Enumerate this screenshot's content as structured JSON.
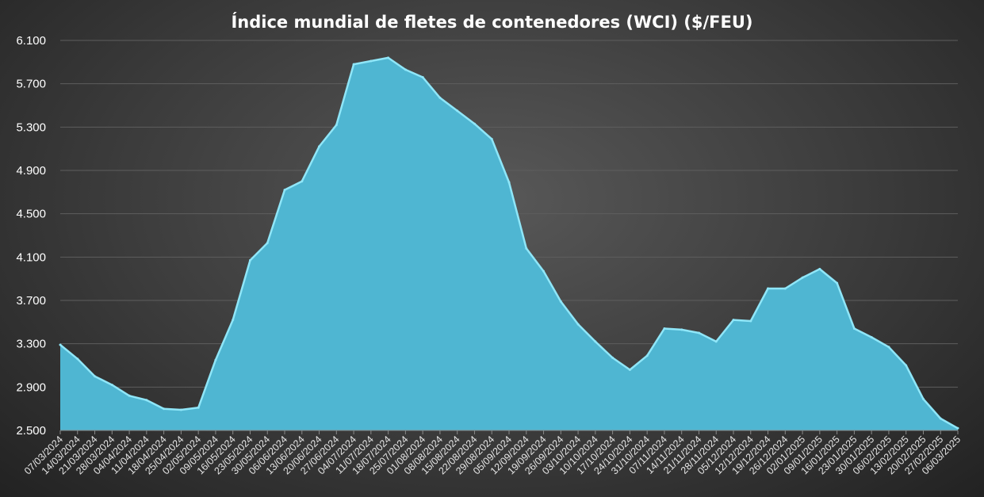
{
  "chart_data": {
    "type": "area",
    "title": "Índice mundial de fletes de contenedores (WCI) ($/FEU)",
    "xlabel": "",
    "ylabel": "",
    "ylim": [
      2500,
      6100
    ],
    "yticks": [
      "2.500",
      "2.900",
      "3.300",
      "3.700",
      "4.100",
      "4.500",
      "4.900",
      "5.300",
      "5.700",
      "6.100"
    ],
    "ytick_values": [
      2500,
      2900,
      3300,
      3700,
      4100,
      4500,
      4900,
      5300,
      5700,
      6100
    ],
    "grid": true,
    "legend": "none",
    "colors": {
      "fill": "#4fb6d2",
      "edge": "#8fe6f8",
      "grid": "#5e5e5e",
      "text": "#ffffff"
    },
    "categories": [
      "07/03/2024",
      "14/03/2024",
      "21/03/2024",
      "28/03/2024",
      "04/04/2024",
      "11/04/2024",
      "18/04/2024",
      "25/04/2024",
      "02/05/2024",
      "09/05/2024",
      "16/05/2024",
      "23/05/2024",
      "30/05/2024",
      "06/06/2024",
      "13/06/2024",
      "20/06/2024",
      "27/06/2024",
      "04/07/2024",
      "11/07/2024",
      "18/07/2024",
      "25/07/2024",
      "01/08/2024",
      "08/08/2024",
      "15/08/2024",
      "22/08/2024",
      "29/08/2024",
      "05/09/2024",
      "12/09/2024",
      "19/09/2024",
      "26/09/2024",
      "03/10/2024",
      "10/10/2024",
      "17/10/2024",
      "24/10/2024",
      "31/10/2024",
      "07/11/2024",
      "14/11/2024",
      "21/11/2024",
      "28/11/2024",
      "05/12/2024",
      "12/12/2024",
      "19/12/2024",
      "26/12/2024",
      "02/01/2025",
      "09/01/2025",
      "16/01/2025",
      "23/01/2025",
      "30/01/2025",
      "06/02/2025",
      "13/02/2025",
      "20/02/2025",
      "27/02/2025",
      "06/03/2025"
    ],
    "labeled_categories": [
      "07/03/2024",
      "14/03/2024",
      "21/03/2024",
      "28/03/2024",
      "04/04/2024",
      "11/04/2024",
      "18/04/2024",
      "25/04/2024",
      "02/05/2024",
      "09/05/2024",
      "16/05/2024",
      "23/05/2024",
      "30/05/2024",
      "06/06/2024",
      "13/06/2024",
      "20/06/2024",
      "27/06/2024",
      "04/07/2024",
      "11/07/2024",
      "18/07/2024",
      "25/07/2024",
      "01/08/2024",
      "08/08/2024",
      "15/08/2024",
      "22/08/2024",
      "29/08/2024",
      "05/09/2024",
      "12/09/2024",
      "19/09/2024",
      "26/09/2024",
      "03/10/2024",
      "10/10/2024",
      "17/10/2024",
      "24/10/2024",
      "31/10/2024",
      "07/11/2024",
      "14/11/2024",
      "21/11/2024",
      "28/11/2024",
      "05/12/2024",
      "12/12/2024",
      "19/12/2024",
      "26/12/2024",
      "02/01/2025",
      "09/01/2025",
      "16/01/2025",
      "23/01/2025",
      "30/01/2025",
      "06/02/2025",
      "13/02/2025",
      "20/02/2025",
      "27/02/2025",
      "06/03/2025"
    ],
    "series": [
      {
        "values": [
          3290,
          3160,
          3000,
          2920,
          2820,
          2780,
          2700,
          2690,
          2710,
          3150,
          3520,
          4070,
          4230,
          4720,
          4800,
          5120,
          5320,
          5880,
          5910,
          5940,
          5830,
          5760,
          5570,
          5450,
          5330,
          5190,
          4790,
          4180,
          3970,
          3690,
          3480,
          3320,
          3170,
          3060,
          3190,
          3440,
          3430,
          3400,
          3320,
          3520,
          3510,
          3810,
          3810,
          3910,
          3990,
          3860,
          3440,
          3360,
          3270,
          3100,
          2790,
          2610,
          2520
        ]
      }
    ]
  }
}
